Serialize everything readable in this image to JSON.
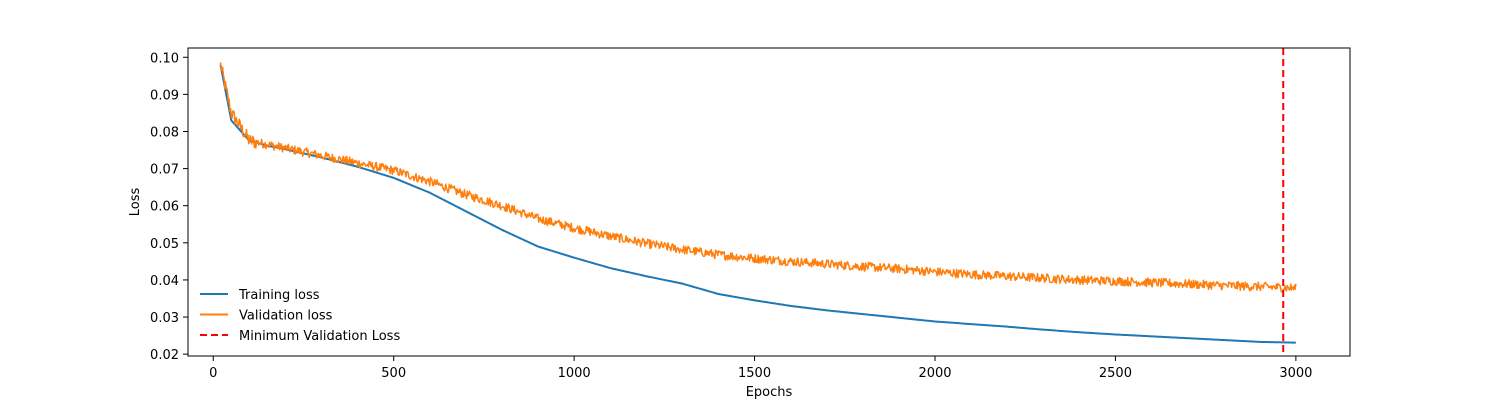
{
  "chart_data": {
    "type": "line",
    "title": "",
    "xlabel": "Epochs",
    "ylabel": "Loss",
    "xlim": [
      -70,
      3150
    ],
    "ylim": [
      0.0195,
      0.1025
    ],
    "x_ticks": [
      0,
      500,
      1000,
      1500,
      2000,
      2500,
      3000
    ],
    "x_tick_labels": [
      "0",
      "500",
      "1000",
      "1500",
      "2000",
      "2500",
      "3000"
    ],
    "y_ticks": [
      0.02,
      0.03,
      0.04,
      0.05,
      0.06,
      0.07,
      0.08,
      0.09,
      0.1
    ],
    "y_tick_labels": [
      "0.02",
      "0.03",
      "0.04",
      "0.05",
      "0.06",
      "0.07",
      "0.08",
      "0.09",
      "0.10"
    ],
    "grid": false,
    "legend_position": "lower-left",
    "series": [
      {
        "name": "Training loss",
        "color": "#1f77b4",
        "style": "solid",
        "x": [
          20,
          50,
          100,
          150,
          200,
          300,
          400,
          500,
          600,
          700,
          800,
          900,
          1000,
          1100,
          1200,
          1300,
          1400,
          1500,
          1600,
          1700,
          1800,
          1900,
          2000,
          2100,
          2200,
          2300,
          2400,
          2500,
          2600,
          2700,
          2800,
          2900,
          3000
        ],
        "y": [
          0.098,
          0.083,
          0.0775,
          0.0762,
          0.0752,
          0.073,
          0.0705,
          0.0675,
          0.0635,
          0.0585,
          0.0535,
          0.049,
          0.046,
          0.0432,
          0.041,
          0.039,
          0.0362,
          0.0345,
          0.033,
          0.0318,
          0.0308,
          0.0298,
          0.0288,
          0.0281,
          0.0274,
          0.0266,
          0.0259,
          0.0253,
          0.0248,
          0.0243,
          0.0238,
          0.0233,
          0.0231
        ]
      },
      {
        "name": "Validation loss",
        "color": "#ff7f0e",
        "style": "solid",
        "x": [
          20,
          50,
          100,
          150,
          200,
          300,
          400,
          500,
          600,
          700,
          800,
          900,
          1000,
          1100,
          1200,
          1300,
          1400,
          1500,
          1600,
          1700,
          1800,
          1900,
          2000,
          2100,
          2200,
          2300,
          2400,
          2500,
          2600,
          2700,
          2800,
          2900,
          3000
        ],
        "y": [
          0.098,
          0.085,
          0.0775,
          0.0765,
          0.0755,
          0.0735,
          0.0715,
          0.0695,
          0.0665,
          0.063,
          0.06,
          0.0565,
          0.054,
          0.0518,
          0.0498,
          0.0482,
          0.0468,
          0.0458,
          0.045,
          0.0443,
          0.0436,
          0.043,
          0.0422,
          0.0415,
          0.041,
          0.0405,
          0.04,
          0.0397,
          0.0393,
          0.0389,
          0.0385,
          0.0382,
          0.0378
        ],
        "noise_amplitude": 0.0012
      },
      {
        "name": "Minimum Validation Loss",
        "color": "#ff0000",
        "style": "dashed",
        "type": "vline",
        "x_value": 2965
      }
    ]
  }
}
